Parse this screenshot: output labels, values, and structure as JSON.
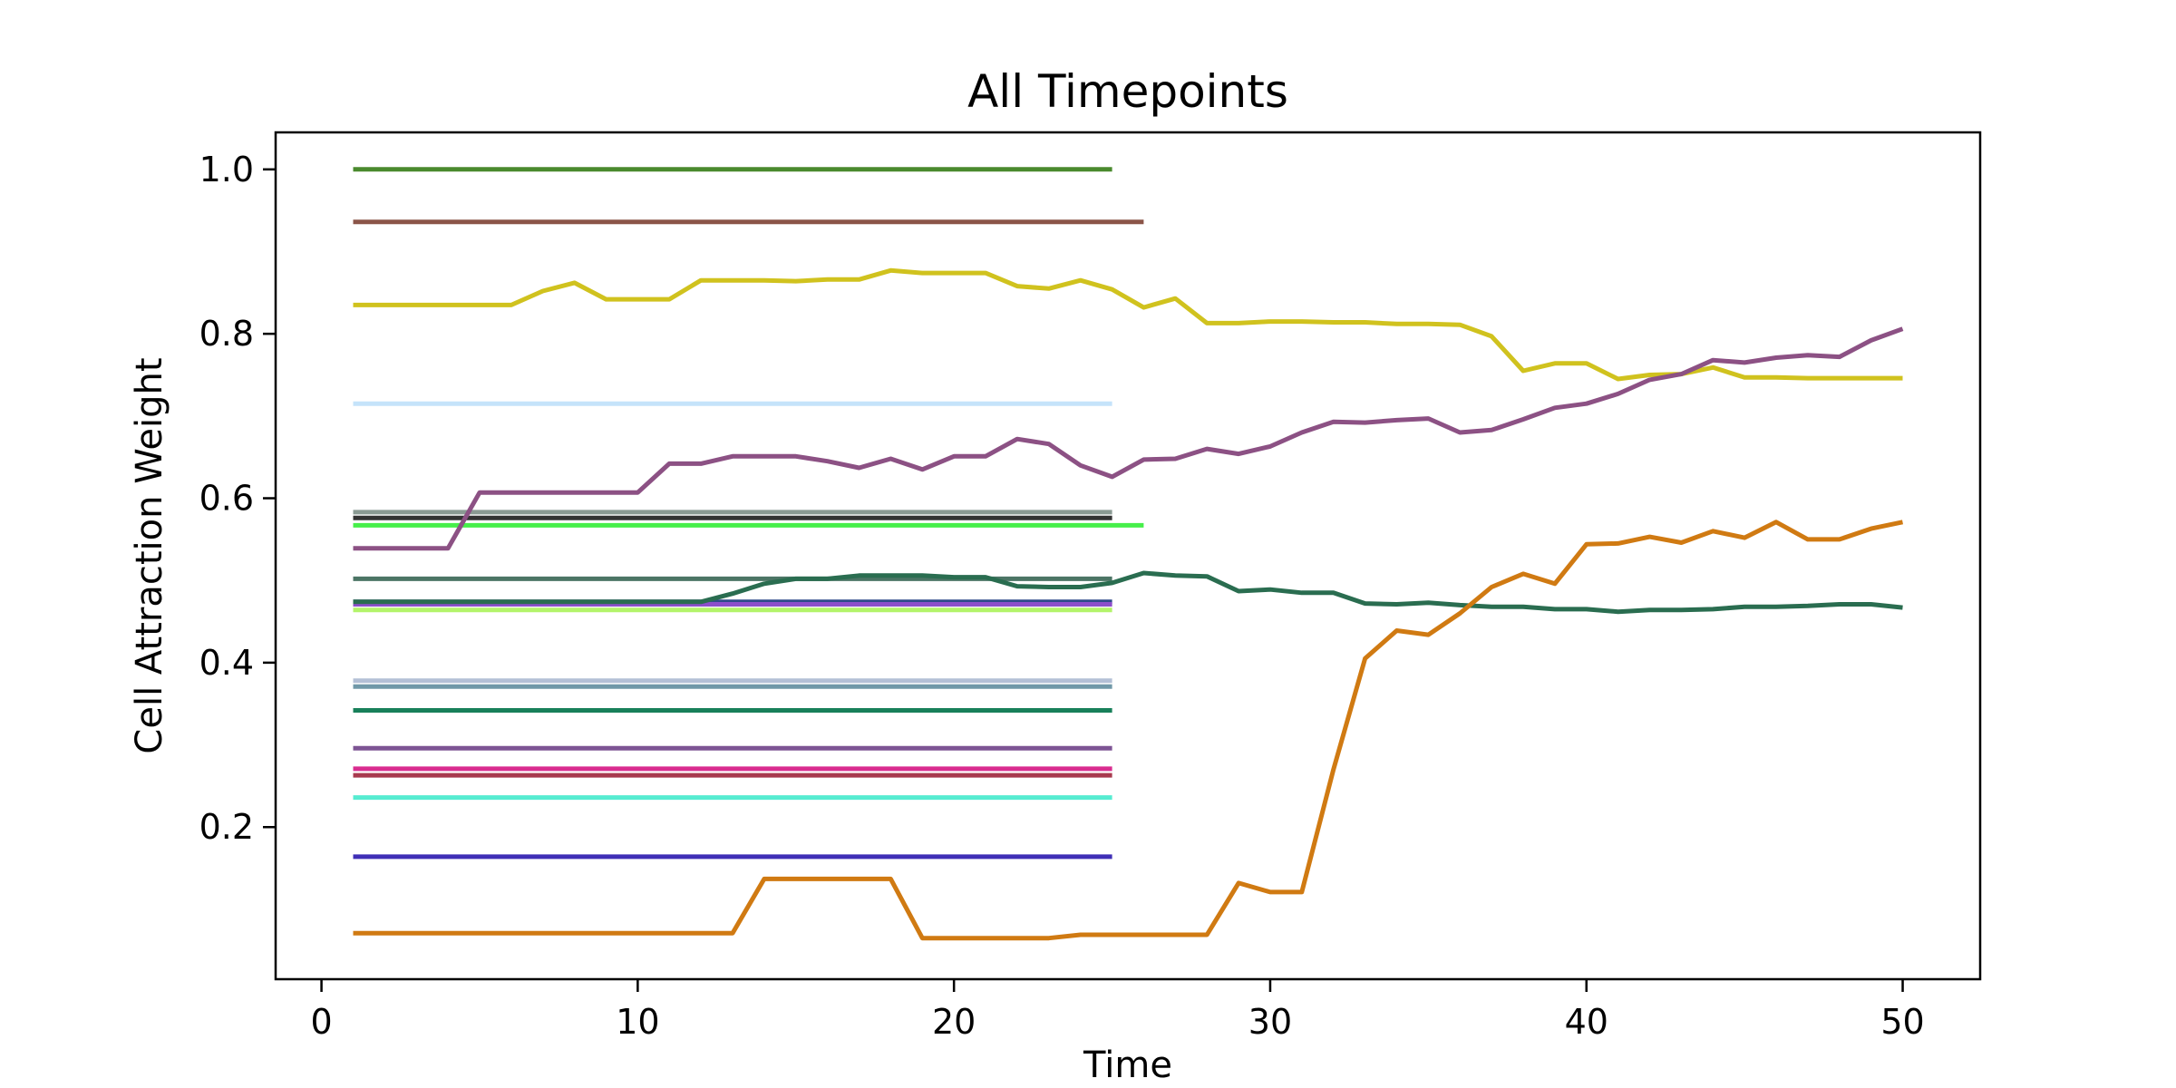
{
  "chart_data": {
    "type": "line",
    "title": "All Timepoints",
    "xlabel": "Time",
    "ylabel": "Cell Attraction Weight",
    "xlim": [
      -1.45,
      52.45
    ],
    "ylim": [
      0.015,
      1.045
    ],
    "xticks": [
      0,
      10,
      20,
      30,
      40,
      50
    ],
    "yticks": [
      0.2,
      0.4,
      0.6,
      0.8,
      1.0
    ],
    "xtick_labels": [
      "0",
      "10",
      "20",
      "30",
      "40",
      "50"
    ],
    "ytick_labels": [
      "0.2",
      "0.4",
      "0.6",
      "0.8",
      "1.0"
    ],
    "grid": false,
    "legend": "none",
    "series": [
      {
        "color": "#4a8a2e",
        "x": [
          1,
          25
        ],
        "y": [
          1.0,
          1.0
        ]
      },
      {
        "color": "#8b5549",
        "x": [
          1,
          26
        ],
        "y": [
          0.936,
          0.936
        ]
      },
      {
        "color": "#c5e3fa",
        "x": [
          1,
          25
        ],
        "y": [
          0.715,
          0.715
        ]
      },
      {
        "color": "#8a9a93",
        "x": [
          1,
          25
        ],
        "y": [
          0.583,
          0.583
        ]
      },
      {
        "color": "#333333",
        "x": [
          1,
          25
        ],
        "y": [
          0.576,
          0.576
        ]
      },
      {
        "color": "#46ef4a",
        "x": [
          1,
          26
        ],
        "y": [
          0.567,
          0.567
        ]
      },
      {
        "color": "#4c7565",
        "x": [
          1,
          25
        ],
        "y": [
          0.502,
          0.502
        ]
      },
      {
        "color": "#2e4a8a",
        "x": [
          1,
          25
        ],
        "y": [
          0.474,
          0.474
        ]
      },
      {
        "color": "#8c4ecb",
        "x": [
          1,
          25
        ],
        "y": [
          0.471,
          0.471
        ]
      },
      {
        "color": "#b3f46a",
        "x": [
          1,
          25
        ],
        "y": [
          0.464,
          0.464
        ]
      },
      {
        "color": "#b4c0d6",
        "x": [
          1,
          25
        ],
        "y": [
          0.378,
          0.378
        ]
      },
      {
        "color": "#7098a8",
        "x": [
          1,
          25
        ],
        "y": [
          0.371,
          0.371
        ]
      },
      {
        "color": "#18805a",
        "x": [
          1,
          25
        ],
        "y": [
          0.342,
          0.342
        ]
      },
      {
        "color": "#7d5494",
        "x": [
          1,
          25
        ],
        "y": [
          0.296,
          0.296
        ]
      },
      {
        "color": "#d92c8f",
        "x": [
          1,
          25
        ],
        "y": [
          0.271,
          0.271
        ]
      },
      {
        "color": "#a83a4e",
        "x": [
          1,
          25
        ],
        "y": [
          0.263,
          0.263
        ]
      },
      {
        "color": "#56ecd1",
        "x": [
          1,
          25
        ],
        "y": [
          0.236,
          0.236
        ]
      },
      {
        "color": "#3f2fb6",
        "x": [
          1,
          25
        ],
        "y": [
          0.164,
          0.164
        ]
      },
      {
        "color": "#d0c21e",
        "x": [
          1,
          2,
          3,
          4,
          5,
          6,
          7,
          8,
          9,
          10,
          11,
          12,
          13,
          14,
          15,
          16,
          17,
          18,
          19,
          20,
          21,
          22,
          23,
          24,
          25,
          26,
          27,
          28,
          29,
          30,
          31,
          32,
          33,
          34,
          35,
          36,
          37,
          38,
          39,
          40,
          41,
          42,
          43,
          44,
          45,
          46,
          47,
          48,
          49,
          50
        ],
        "y": [
          0.835,
          0.835,
          0.835,
          0.835,
          0.835,
          0.835,
          0.852,
          0.862,
          0.842,
          0.842,
          0.842,
          0.865,
          0.865,
          0.865,
          0.864,
          0.866,
          0.866,
          0.877,
          0.874,
          0.874,
          0.874,
          0.858,
          0.855,
          0.865,
          0.854,
          0.832,
          0.843,
          0.813,
          0.813,
          0.815,
          0.815,
          0.814,
          0.814,
          0.812,
          0.812,
          0.811,
          0.797,
          0.755,
          0.764,
          0.764,
          0.745,
          0.75,
          0.751,
          0.759,
          0.747,
          0.747,
          0.746,
          0.746,
          0.746,
          0.746
        ]
      },
      {
        "color": "#8c5184",
        "x": [
          1,
          2,
          3,
          4,
          5,
          6,
          7,
          8,
          9,
          10,
          11,
          12,
          13,
          14,
          15,
          16,
          17,
          18,
          19,
          20,
          21,
          22,
          23,
          24,
          25,
          26,
          27,
          28,
          29,
          30,
          31,
          32,
          33,
          34,
          35,
          36,
          37,
          38,
          39,
          40,
          41,
          42,
          43,
          44,
          45,
          46,
          47,
          48,
          49,
          50
        ],
        "y": [
          0.539,
          0.539,
          0.539,
          0.539,
          0.607,
          0.607,
          0.607,
          0.607,
          0.607,
          0.607,
          0.642,
          0.642,
          0.651,
          0.651,
          0.651,
          0.645,
          0.637,
          0.648,
          0.635,
          0.651,
          0.651,
          0.672,
          0.666,
          0.64,
          0.626,
          0.647,
          0.648,
          0.66,
          0.654,
          0.663,
          0.68,
          0.693,
          0.692,
          0.695,
          0.697,
          0.68,
          0.683,
          0.696,
          0.71,
          0.715,
          0.727,
          0.744,
          0.751,
          0.768,
          0.765,
          0.771,
          0.774,
          0.772,
          0.792,
          0.806
        ]
      },
      {
        "color": "#2a6d50",
        "x": [
          1,
          2,
          3,
          4,
          5,
          6,
          7,
          8,
          9,
          10,
          11,
          12,
          13,
          14,
          15,
          16,
          17,
          18,
          19,
          20,
          21,
          22,
          23,
          24,
          25,
          26,
          27,
          28,
          29,
          30,
          31,
          32,
          33,
          34,
          35,
          36,
          37,
          38,
          39,
          40,
          41,
          42,
          43,
          44,
          45,
          46,
          47,
          48,
          49,
          50
        ],
        "y": [
          0.474,
          0.474,
          0.474,
          0.474,
          0.474,
          0.474,
          0.474,
          0.474,
          0.474,
          0.474,
          0.474,
          0.474,
          0.484,
          0.496,
          0.502,
          0.502,
          0.506,
          0.506,
          0.506,
          0.504,
          0.504,
          0.493,
          0.492,
          0.492,
          0.497,
          0.509,
          0.506,
          0.505,
          0.487,
          0.489,
          0.485,
          0.485,
          0.472,
          0.471,
          0.473,
          0.47,
          0.468,
          0.468,
          0.465,
          0.465,
          0.462,
          0.464,
          0.464,
          0.465,
          0.468,
          0.468,
          0.469,
          0.471,
          0.471,
          0.467
        ]
      },
      {
        "color": "#d07a12",
        "x": [
          1,
          2,
          3,
          4,
          5,
          6,
          7,
          8,
          9,
          10,
          11,
          12,
          13,
          14,
          15,
          16,
          17,
          18,
          19,
          20,
          21,
          22,
          23,
          24,
          25,
          26,
          27,
          28,
          29,
          30,
          31,
          32,
          33,
          34,
          35,
          36,
          37,
          38,
          39,
          40,
          41,
          42,
          43,
          44,
          45,
          46,
          47,
          48,
          49,
          50
        ],
        "y": [
          0.071,
          0.071,
          0.071,
          0.071,
          0.071,
          0.071,
          0.071,
          0.071,
          0.071,
          0.071,
          0.071,
          0.071,
          0.071,
          0.137,
          0.137,
          0.137,
          0.137,
          0.137,
          0.065,
          0.065,
          0.065,
          0.065,
          0.065,
          0.069,
          0.069,
          0.069,
          0.069,
          0.069,
          0.132,
          0.121,
          0.121,
          0.27,
          0.405,
          0.439,
          0.434,
          0.46,
          0.492,
          0.508,
          0.496,
          0.544,
          0.545,
          0.553,
          0.546,
          0.56,
          0.552,
          0.571,
          0.55,
          0.55,
          0.563,
          0.571
        ]
      }
    ]
  }
}
